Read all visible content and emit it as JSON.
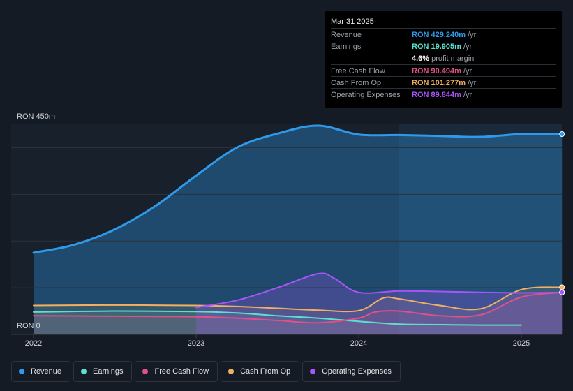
{
  "tooltip": {
    "date": "Mar 31 2025",
    "rows": [
      {
        "label": "Revenue",
        "value": "RON 429.240m",
        "unit": "/yr",
        "color": "#2f9ae9"
      },
      {
        "label": "Earnings",
        "value": "RON 19.905m",
        "unit": "/yr",
        "color": "#5ce0d0"
      },
      {
        "label": "",
        "value": "4.6%",
        "unit": "profit margin",
        "color": "#ffffff"
      },
      {
        "label": "Free Cash Flow",
        "value": "RON 90.494m",
        "unit": "/yr",
        "color": "#e0508a"
      },
      {
        "label": "Cash From Op",
        "value": "RON 101.277m",
        "unit": "/yr",
        "color": "#f0b060"
      },
      {
        "label": "Operating Expenses",
        "value": "RON 89.844m",
        "unit": "/yr",
        "color": "#a855f7"
      }
    ]
  },
  "chart_data": {
    "type": "line",
    "ylim": [
      0,
      450
    ],
    "y_top_label": "RON 450m",
    "y_bottom_label": "RON 0",
    "x_ticks": [
      "2022",
      "2023",
      "2024",
      "2025"
    ],
    "series": [
      {
        "name": "Revenue",
        "color": "#2f9ae9",
        "points": [
          [
            2022.0,
            175
          ],
          [
            2022.25,
            192
          ],
          [
            2022.5,
            225
          ],
          [
            2022.75,
            275
          ],
          [
            2023.0,
            340
          ],
          [
            2023.25,
            400
          ],
          [
            2023.5,
            430
          ],
          [
            2023.75,
            447
          ],
          [
            2024.0,
            428
          ],
          [
            2024.25,
            427
          ],
          [
            2024.5,
            425
          ],
          [
            2024.75,
            423
          ],
          [
            2025.0,
            429
          ],
          [
            2025.25,
            429
          ]
        ]
      },
      {
        "name": "Earnings",
        "color": "#5ce0d0",
        "points": [
          [
            2022.0,
            48
          ],
          [
            2022.5,
            50
          ],
          [
            2023.0,
            49
          ],
          [
            2023.25,
            46
          ],
          [
            2023.5,
            40
          ],
          [
            2023.75,
            35
          ],
          [
            2024.0,
            28
          ],
          [
            2024.25,
            22
          ],
          [
            2024.5,
            21
          ],
          [
            2024.75,
            20
          ],
          [
            2025.0,
            20
          ]
        ]
      },
      {
        "name": "Free Cash Flow",
        "color": "#e0508a",
        "points": [
          [
            2022.0,
            40
          ],
          [
            2022.5,
            39
          ],
          [
            2023.0,
            38
          ],
          [
            2023.25,
            35
          ],
          [
            2023.5,
            30
          ],
          [
            2023.75,
            25
          ],
          [
            2024.0,
            35
          ],
          [
            2024.1,
            48
          ],
          [
            2024.25,
            50
          ],
          [
            2024.5,
            40
          ],
          [
            2024.75,
            42
          ],
          [
            2025.0,
            80
          ],
          [
            2025.25,
            90
          ]
        ]
      },
      {
        "name": "Cash From Op",
        "color": "#f0b060",
        "points": [
          [
            2022.0,
            62
          ],
          [
            2022.5,
            63
          ],
          [
            2023.0,
            62
          ],
          [
            2023.25,
            60
          ],
          [
            2023.5,
            56
          ],
          [
            2023.75,
            52
          ],
          [
            2024.0,
            51
          ],
          [
            2024.15,
            78
          ],
          [
            2024.25,
            76
          ],
          [
            2024.5,
            62
          ],
          [
            2024.75,
            55
          ],
          [
            2025.0,
            96
          ],
          [
            2025.25,
            101
          ]
        ]
      },
      {
        "name": "Operating Expenses",
        "color": "#a855f7",
        "points": [
          [
            2023.0,
            58
          ],
          [
            2023.25,
            73
          ],
          [
            2023.5,
            100
          ],
          [
            2023.75,
            130
          ],
          [
            2023.85,
            120
          ],
          [
            2024.0,
            90
          ],
          [
            2024.25,
            93
          ],
          [
            2024.5,
            92
          ],
          [
            2024.75,
            90
          ],
          [
            2025.0,
            89
          ],
          [
            2025.25,
            90
          ]
        ]
      }
    ]
  },
  "legend": [
    {
      "label": "Revenue",
      "color": "#2f9ae9"
    },
    {
      "label": "Earnings",
      "color": "#5ce0d0"
    },
    {
      "label": "Free Cash Flow",
      "color": "#e0508a"
    },
    {
      "label": "Cash From Op",
      "color": "#f0b060"
    },
    {
      "label": "Operating Expenses",
      "color": "#a855f7"
    }
  ]
}
